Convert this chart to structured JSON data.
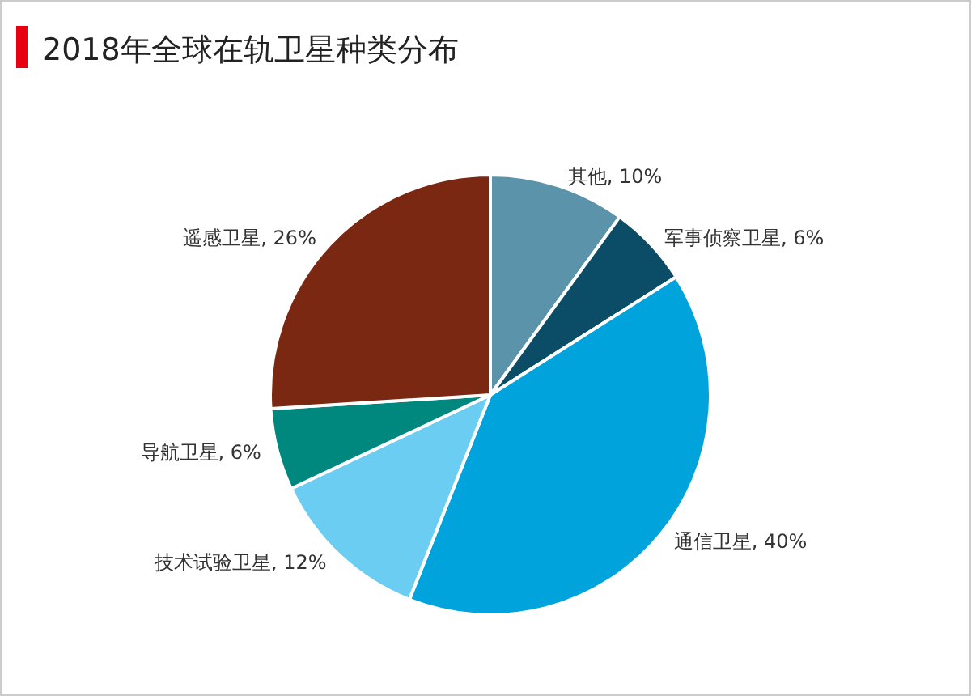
{
  "chart_data": {
    "type": "pie",
    "title": "2018年全球在轨卫星种类分布",
    "categories": [
      "其他",
      "军事侦察卫星",
      "通信卫星",
      "技术试验卫星",
      "导航卫星",
      "遥感卫星"
    ],
    "values": [
      10,
      6,
      40,
      12,
      6,
      26
    ],
    "colors": [
      "#5b93aa",
      "#0b4c66",
      "#00a3dc",
      "#6ccdf2",
      "#00877e",
      "#7a2812"
    ],
    "value_labels": [
      ", 10%",
      ", 6%",
      ", 40%",
      ", 12%",
      ", 6%",
      ", 26%"
    ],
    "legend": false
  }
}
